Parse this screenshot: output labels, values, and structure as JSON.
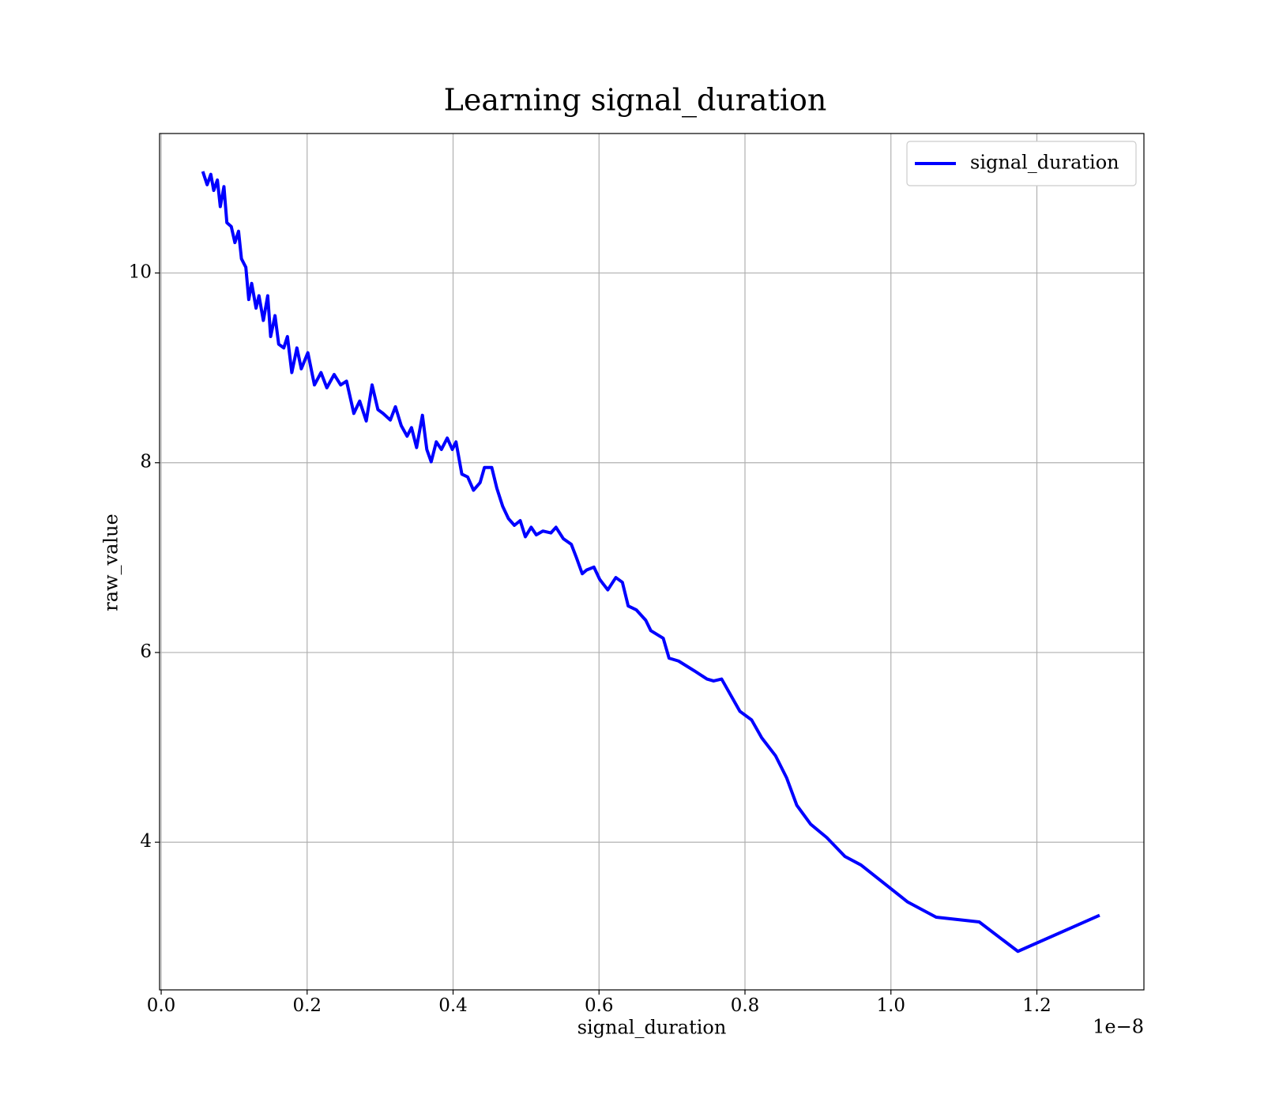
{
  "chart_data": {
    "type": "line",
    "title": "Learning signal_duration",
    "xlabel": "signal_duration",
    "ylabel": "raw_value",
    "x_offset_text": "1e−8",
    "x": [
      0.057,
      0.063,
      0.068,
      0.072,
      0.077,
      0.081,
      0.086,
      0.09,
      0.096,
      0.101,
      0.106,
      0.11,
      0.116,
      0.12,
      0.124,
      0.13,
      0.134,
      0.14,
      0.146,
      0.15,
      0.156,
      0.161,
      0.168,
      0.173,
      0.179,
      0.186,
      0.192,
      0.201,
      0.21,
      0.219,
      0.227,
      0.237,
      0.246,
      0.254,
      0.264,
      0.272,
      0.281,
      0.289,
      0.297,
      0.304,
      0.314,
      0.321,
      0.329,
      0.337,
      0.343,
      0.35,
      0.358,
      0.364,
      0.37,
      0.377,
      0.384,
      0.392,
      0.399,
      0.404,
      0.412,
      0.42,
      0.428,
      0.437,
      0.443,
      0.453,
      0.46,
      0.468,
      0.476,
      0.484,
      0.492,
      0.499,
      0.507,
      0.514,
      0.523,
      0.534,
      0.541,
      0.551,
      0.562,
      0.569,
      0.577,
      0.583,
      0.593,
      0.601,
      0.612,
      0.623,
      0.632,
      0.64,
      0.651,
      0.664,
      0.671,
      0.688,
      0.696,
      0.709,
      0.732,
      0.748,
      0.757,
      0.768,
      0.793,
      0.809,
      0.823,
      0.842,
      0.857,
      0.871,
      0.89,
      0.912,
      0.937,
      0.959,
      1.023,
      1.062,
      1.121,
      1.174,
      1.286
    ],
    "series": [
      {
        "name": "signal_duration",
        "color": "#0000ff",
        "values": [
          11.07,
          10.93,
          11.04,
          10.87,
          10.98,
          10.7,
          10.91,
          10.53,
          10.49,
          10.32,
          10.44,
          10.15,
          10.06,
          9.72,
          9.89,
          9.63,
          9.76,
          9.5,
          9.76,
          9.33,
          9.55,
          9.25,
          9.21,
          9.33,
          8.95,
          9.21,
          8.99,
          9.16,
          8.82,
          8.95,
          8.79,
          8.93,
          8.82,
          8.86,
          8.52,
          8.65,
          8.44,
          8.82,
          8.56,
          8.52,
          8.45,
          8.59,
          8.39,
          8.28,
          8.37,
          8.16,
          8.5,
          8.14,
          8.01,
          8.22,
          8.14,
          8.26,
          8.14,
          8.22,
          7.88,
          7.85,
          7.71,
          7.79,
          7.95,
          7.95,
          7.73,
          7.54,
          7.41,
          7.34,
          7.39,
          7.22,
          7.32,
          7.24,
          7.28,
          7.26,
          7.32,
          7.2,
          7.14,
          7.0,
          6.83,
          6.87,
          6.9,
          6.77,
          6.66,
          6.79,
          6.74,
          6.49,
          6.45,
          6.34,
          6.23,
          6.15,
          5.94,
          5.91,
          5.8,
          5.72,
          5.7,
          5.72,
          5.38,
          5.29,
          5.1,
          4.91,
          4.68,
          4.39,
          4.19,
          4.05,
          3.85,
          3.76,
          3.37,
          3.21,
          3.16,
          2.85,
          3.23
        ]
      }
    ],
    "xlim": [
      -0.0022,
      1.3467
    ],
    "ylim": [
      2.444,
      11.47
    ],
    "xticks": [
      {
        "value": 0,
        "label": "0.0"
      },
      0.2,
      0.4,
      0.6,
      0.8,
      {
        "value": 1,
        "label": "1.0"
      },
      1.2
    ],
    "yticks": [
      4,
      6,
      8,
      10
    ],
    "grid": true,
    "legend": "upper right"
  }
}
